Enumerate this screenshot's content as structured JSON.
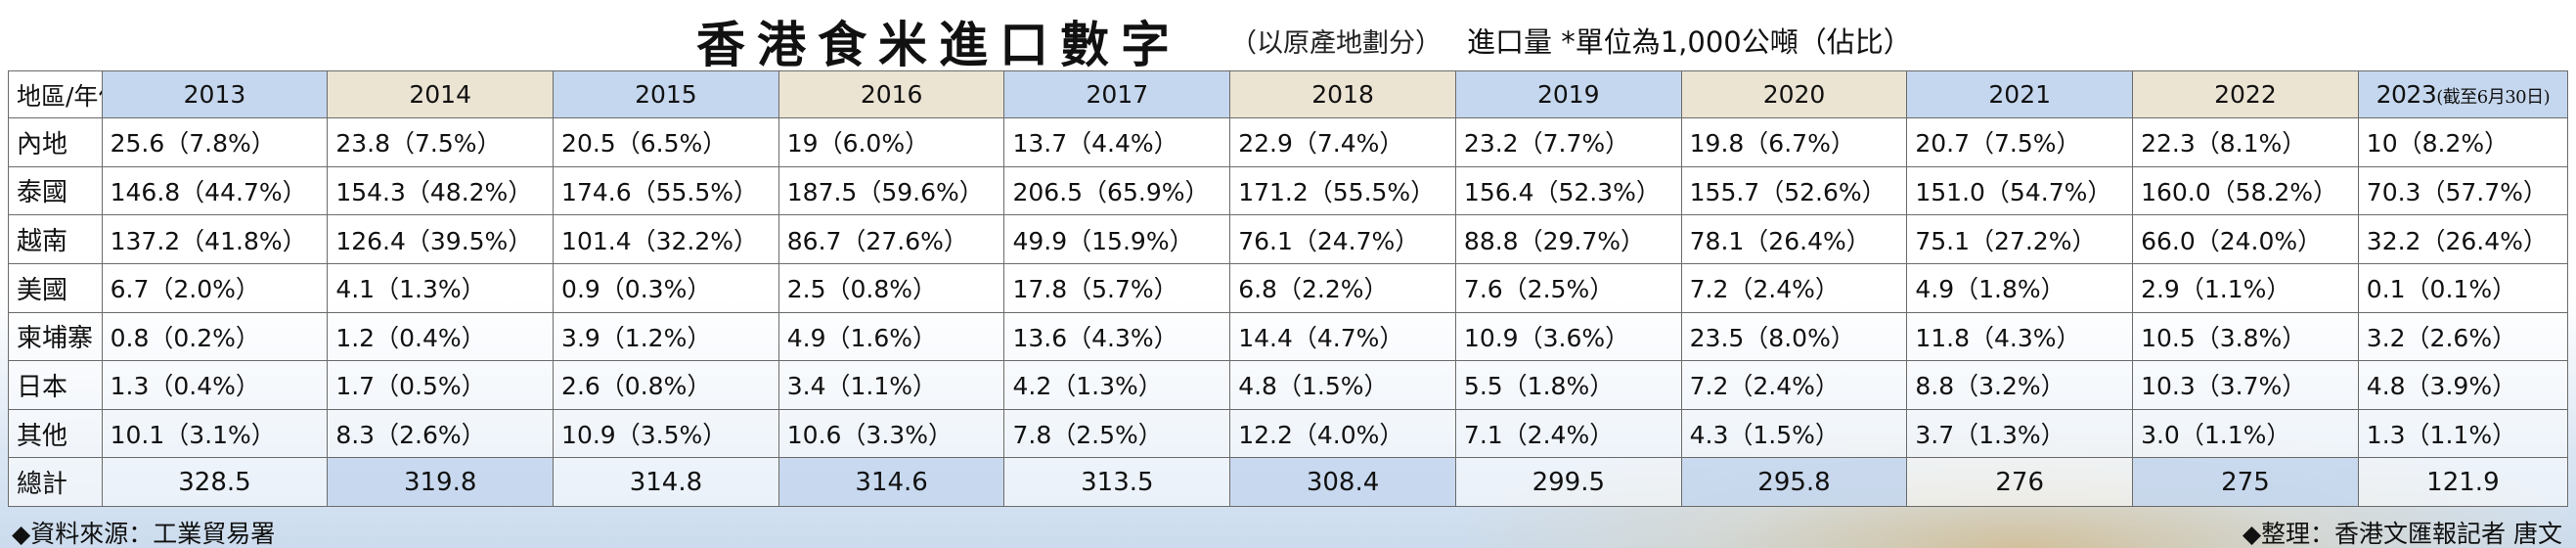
{
  "header": {
    "title": "香港食米進口數字",
    "subtitle": "（以原產地劃分）",
    "unit_note": "進口量 *單位為1,000公噸（佔比）"
  },
  "table": {
    "corner_label": "地區/年份",
    "years": [
      "2013",
      "2014",
      "2015",
      "2016",
      "2017",
      "2018",
      "2019",
      "2020",
      "2021",
      "2022"
    ],
    "last_year": "2023",
    "last_year_note": "(截至6月30日)",
    "rows": [
      {
        "region": "內地",
        "cells": [
          "25.6（7.8%）",
          "23.8（7.5%）",
          "20.5（6.5%）",
          "19（6.0%）",
          "13.7（4.4%）",
          "22.9（7.4%）",
          "23.2（7.7%）",
          "19.8（6.7%）",
          "20.7（7.5%）",
          "22.3（8.1%）",
          "10（8.2%）"
        ]
      },
      {
        "region": "泰國",
        "cells": [
          "146.8（44.7%）",
          "154.3（48.2%）",
          "174.6（55.5%）",
          "187.5（59.6%）",
          "206.5（65.9%）",
          "171.2（55.5%）",
          "156.4（52.3%）",
          "155.7（52.6%）",
          "151.0（54.7%）",
          "160.0（58.2%）",
          "70.3（57.7%）"
        ]
      },
      {
        "region": "越南",
        "cells": [
          "137.2（41.8%）",
          "126.4（39.5%）",
          "101.4（32.2%）",
          "86.7（27.6%）",
          "49.9（15.9%）",
          "76.1（24.7%）",
          "88.8（29.7%）",
          "78.1（26.4%）",
          "75.1（27.2%）",
          "66.0（24.0%）",
          "32.2（26.4%）"
        ]
      },
      {
        "region": "美國",
        "cells": [
          "6.7（2.0%）",
          "4.1（1.3%）",
          "0.9（0.3%）",
          "2.5（0.8%）",
          "17.8（5.7%）",
          "6.8（2.2%）",
          "7.6（2.5%）",
          "7.2（2.4%）",
          "4.9（1.8%）",
          "2.9（1.1%）",
          "0.1（0.1%）"
        ]
      },
      {
        "region": "柬埔寨",
        "cells": [
          "0.8（0.2%）",
          "1.2（0.4%）",
          "3.9（1.2%）",
          "4.9（1.6%）",
          "13.6（4.3%）",
          "14.4（4.7%）",
          "10.9（3.6%）",
          "23.5（8.0%）",
          "11.8（4.3%）",
          "10.5（3.8%）",
          "3.2（2.6%）"
        ]
      },
      {
        "region": "日本",
        "cells": [
          "1.3（0.4%）",
          "1.7（0.5%）",
          "2.6（0.8%）",
          "3.4（1.1%）",
          "4.2（1.3%）",
          "4.8（1.5%）",
          "5.5（1.8%）",
          "7.2（2.4%）",
          "8.8（3.2%）",
          "10.3（3.7%）",
          "4.8（3.9%）"
        ]
      },
      {
        "region": "其他",
        "cells": [
          "10.1（3.1%）",
          "8.3（2.6%）",
          "10.9（3.5%）",
          "10.6（3.3%）",
          "7.8（2.5%）",
          "12.2（4.0%）",
          "7.1（2.4%）",
          "4.3（1.5%）",
          "3.7（1.3%）",
          "3.0（1.1%）",
          "1.3（1.1%）"
        ]
      }
    ],
    "total": {
      "label": "總計",
      "cells": [
        "328.5",
        "319.8",
        "314.8",
        "314.6",
        "313.5",
        "308.4",
        "299.5",
        "295.8",
        "276",
        "275",
        "121.9"
      ]
    }
  },
  "footer": {
    "source": "◆資料來源：工業貿易署",
    "credit": "◆整理：香港文匯報記者 唐文"
  },
  "colors": {
    "header_blue": "#c5d7ee",
    "header_tan": "#ece4d3",
    "border": "#6b6b6b"
  }
}
